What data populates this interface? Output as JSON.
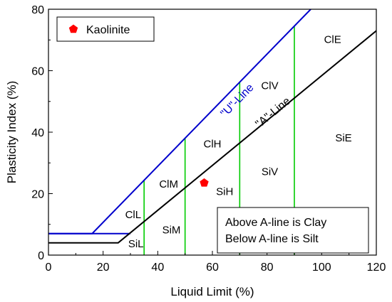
{
  "chart_data": {
    "type": "line",
    "xlabel": "Liquid Limit (%)",
    "ylabel": "Plasticity Index (%)",
    "xlim": [
      0,
      120
    ],
    "ylim": [
      0,
      80
    ],
    "x_ticks": [
      0,
      20,
      40,
      60,
      80,
      100,
      120
    ],
    "y_ticks": [
      0,
      20,
      40,
      60,
      80
    ],
    "grid": false,
    "legend": "top-left",
    "series": [
      {
        "name": "\"U\"-Line",
        "color": "#0000cc",
        "points": [
          [
            0,
            7
          ],
          [
            16,
            7
          ],
          [
            96,
            80
          ]
        ]
      },
      {
        "name": "\"A\"-Line",
        "color": "#000000",
        "points": [
          [
            0,
            4
          ],
          [
            25.5,
            4
          ],
          [
            120,
            73
          ]
        ]
      },
      {
        "name": "Kaolinite",
        "type": "scatter",
        "marker": "pentagon",
        "color": "#ff0000",
        "points": [
          [
            57,
            23.5
          ]
        ]
      }
    ],
    "legend_entries": [
      "Kaolinite"
    ],
    "dividers": {
      "color": "#00cc00",
      "x_values": [
        35,
        50,
        70,
        90
      ],
      "x_label": "Liquid Limit (%)"
    },
    "short_blue_segment": [
      [
        0,
        7
      ],
      [
        30,
        7
      ]
    ],
    "regions": [
      {
        "label": "ClL",
        "x": 31,
        "y": 12
      },
      {
        "label": "SiL",
        "x": 32,
        "y": 2.5
      },
      {
        "label": "ClM",
        "x": 44,
        "y": 22
      },
      {
        "label": "SiM",
        "x": 45,
        "y": 7
      },
      {
        "label": "ClH",
        "x": 60,
        "y": 35
      },
      {
        "label": "SiH",
        "x": 64.5,
        "y": 19.5
      },
      {
        "label": "ClV",
        "x": 81,
        "y": 54
      },
      {
        "label": "SiV",
        "x": 81,
        "y": 26
      },
      {
        "label": "ClE",
        "x": 104,
        "y": 69
      },
      {
        "label": "SiE",
        "x": 108,
        "y": 37
      }
    ],
    "line_labels": [
      {
        "label": "\"U\"-Line",
        "x": 70,
        "y": 49.5,
        "color": "#0000cc",
        "angle_x0": 64,
        "angle_x1": 80
      },
      {
        "label": "\"A\"-Line",
        "x": 83,
        "y": 45.5,
        "color": "#000000",
        "angle_x0": 74,
        "angle_x1": 92
      }
    ],
    "annotation": [
      "Above A-line is Clay",
      "Below A-line is Silt"
    ]
  }
}
